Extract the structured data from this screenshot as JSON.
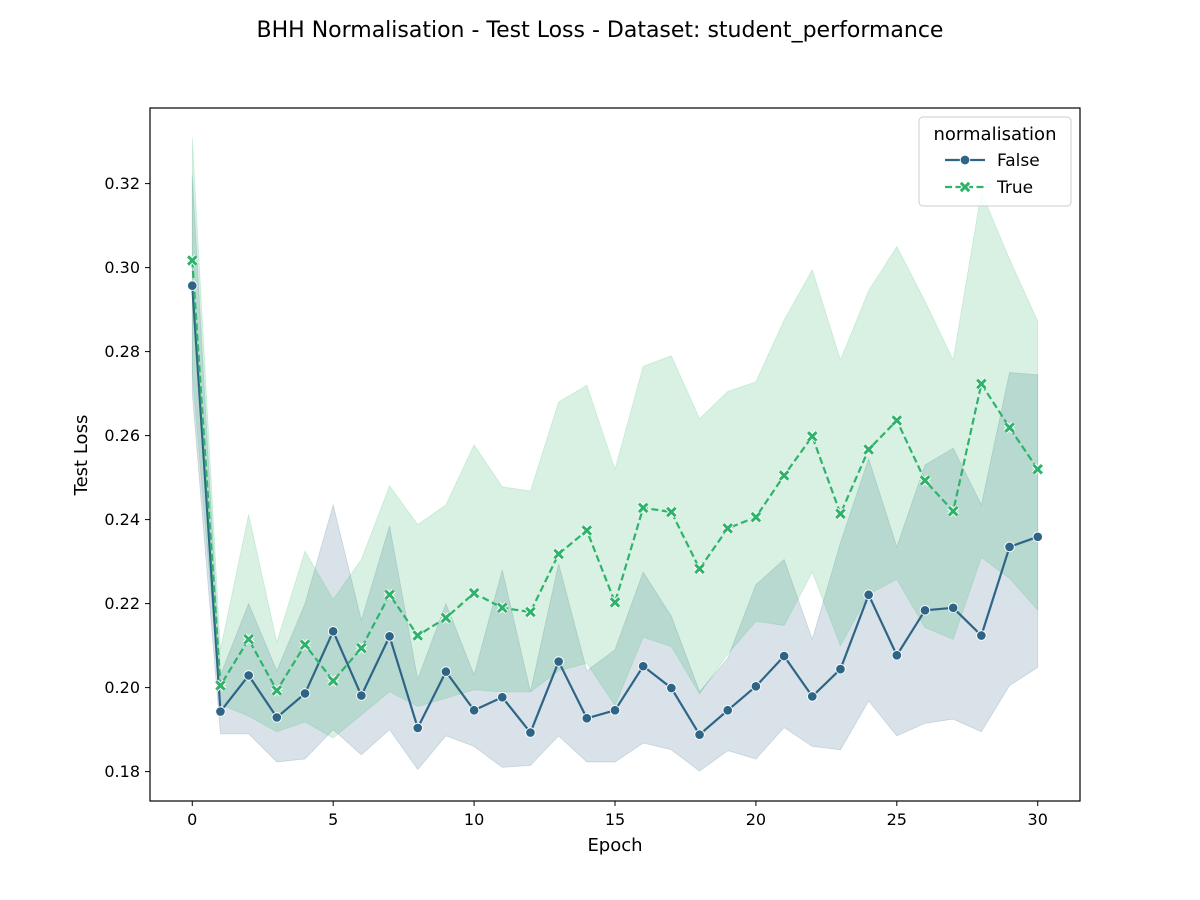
{
  "chart_data": {
    "type": "line",
    "title": "BHH Normalisation - Test Loss - Dataset: student_performance",
    "xlabel": "Epoch",
    "ylabel": "Test Loss",
    "xlim": [
      -1.5,
      31.5
    ],
    "ylim": [
      0.173,
      0.338
    ],
    "xticks": [
      0,
      5,
      10,
      15,
      20,
      25,
      30
    ],
    "yticks": [
      0.18,
      0.2,
      0.22,
      0.24,
      0.26,
      0.28,
      0.3,
      0.32
    ],
    "ytick_labels": [
      "0.18",
      "0.20",
      "0.22",
      "0.24",
      "0.26",
      "0.28",
      "0.30",
      "0.32"
    ],
    "grid": false,
    "legend": {
      "title": "normalisation",
      "placement": "top-right"
    },
    "x": [
      0,
      1,
      2,
      3,
      4,
      5,
      6,
      7,
      8,
      9,
      10,
      11,
      12,
      13,
      14,
      15,
      16,
      17,
      18,
      19,
      20,
      21,
      22,
      23,
      24,
      25,
      26,
      27,
      28,
      29,
      30
    ],
    "series": [
      {
        "name": "False",
        "color": "#2e6587",
        "band_color": "#2e6587",
        "band_opacity": 0.19,
        "marker": "circle",
        "dashed": false,
        "values": [
          0.2957,
          0.1943,
          0.2029,
          0.1929,
          0.1986,
          0.2134,
          0.1981,
          0.2122,
          0.1904,
          0.2038,
          0.1946,
          0.1977,
          0.1893,
          0.2062,
          0.1927,
          0.1946,
          0.2051,
          0.1999,
          0.1888,
          0.1946,
          0.2003,
          0.2075,
          0.1979,
          0.2044,
          0.2221,
          0.2077,
          0.2184,
          0.219,
          0.2124,
          0.2335,
          0.2359
        ],
        "upper": [
          0.322,
          0.203,
          0.22,
          0.204,
          0.22,
          0.2435,
          0.216,
          0.2385,
          0.202,
          0.22,
          0.203,
          0.228,
          0.199,
          0.2295,
          0.204,
          0.209,
          0.2275,
          0.217,
          0.199,
          0.207,
          0.2245,
          0.2305,
          0.2115,
          0.2345,
          0.2545,
          0.2335,
          0.253,
          0.257,
          0.2435,
          0.275,
          0.2745
        ],
        "lower": [
          0.27,
          0.189,
          0.189,
          0.1823,
          0.183,
          0.19,
          0.184,
          0.19,
          0.1805,
          0.1885,
          0.186,
          0.181,
          0.1815,
          0.1885,
          0.1823,
          0.1823,
          0.1868,
          0.1852,
          0.1801,
          0.185,
          0.183,
          0.1905,
          0.186,
          0.1852,
          0.1968,
          0.1885,
          0.1915,
          0.1925,
          0.1895,
          0.2005,
          0.2048
        ]
      },
      {
        "name": "True",
        "color": "#2fb36b",
        "band_color": "#2fb36b",
        "band_opacity": 0.19,
        "marker": "x",
        "dashed": true,
        "values": [
          0.3017,
          0.2005,
          0.2115,
          0.1993,
          0.2102,
          0.2016,
          0.2094,
          0.2221,
          0.2124,
          0.2166,
          0.2225,
          0.219,
          0.218,
          0.2318,
          0.2374,
          0.2203,
          0.2428,
          0.2418,
          0.2283,
          0.2379,
          0.2406,
          0.2505,
          0.2598,
          0.2414,
          0.2567,
          0.2636,
          0.2493,
          0.242,
          0.2723,
          0.2619,
          0.252
        ],
        "upper": [
          0.331,
          0.209,
          0.2412,
          0.2108,
          0.2325,
          0.221,
          0.2305,
          0.248,
          0.2388,
          0.2435,
          0.2578,
          0.2478,
          0.2468,
          0.268,
          0.272,
          0.252,
          0.2765,
          0.279,
          0.264,
          0.2705,
          0.2728,
          0.2875,
          0.2995,
          0.278,
          0.2945,
          0.305,
          0.292,
          0.278,
          0.318,
          0.302,
          0.2872
        ],
        "lower": [
          0.275,
          0.196,
          0.1932,
          0.1895,
          0.1918,
          0.188,
          0.1935,
          0.199,
          0.1955,
          0.1975,
          0.1995,
          0.199,
          0.199,
          0.204,
          0.2058,
          0.1958,
          0.212,
          0.2098,
          0.1985,
          0.208,
          0.2158,
          0.2148,
          0.2275,
          0.21,
          0.2222,
          0.2258,
          0.2143,
          0.2115,
          0.231,
          0.226,
          0.2185
        ]
      }
    ]
  }
}
